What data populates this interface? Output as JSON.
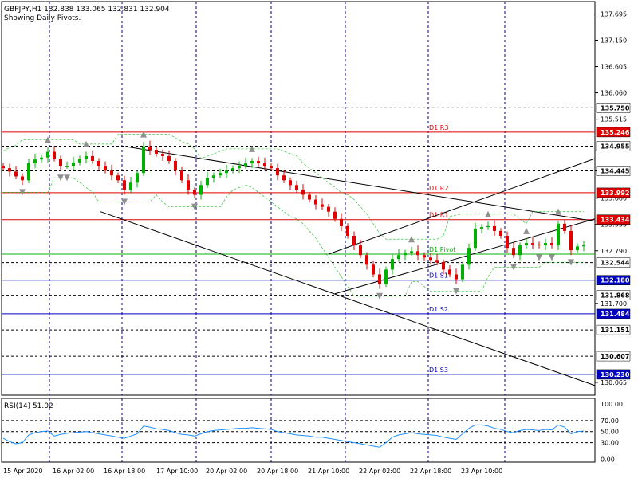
{
  "header": {
    "symbol_line": "GBPJPY,H1  132.838 133.065 132.831 132.904",
    "subtitle": "Showing Daily Pivots."
  },
  "colors": {
    "resistance": "#e00000",
    "support": "#0000c0",
    "pivot": "#00b000",
    "grid": "#000080",
    "bull": "#00b000",
    "bear": "#e00000",
    "rsi": "#1e90ff",
    "fractal": "#909090"
  },
  "chart_data": [
    {
      "type": "candlestick",
      "ylim": [
        129.8,
        137.95
      ],
      "y_ticks": [
        137.695,
        137.15,
        136.605,
        136.06,
        135.515,
        134.445,
        133.88,
        133.335,
        132.79,
        131.7,
        130.065
      ],
      "price_badges": [
        {
          "value": 135.75,
          "label": "135.750",
          "style": "black"
        },
        {
          "value": 135.246,
          "label": "135.246",
          "style": "red"
        },
        {
          "value": 134.955,
          "label": "134.955",
          "style": "black"
        },
        {
          "value": 134.445,
          "label": "134.445",
          "style": "black"
        },
        {
          "value": 133.992,
          "label": "133.992",
          "style": "red"
        },
        {
          "value": 133.434,
          "label": "133.434",
          "style": "red"
        },
        {
          "value": 132.544,
          "label": "132.544",
          "style": "black"
        },
        {
          "value": 132.18,
          "label": "132.180",
          "style": "blue"
        },
        {
          "value": 131.868,
          "label": "131.868",
          "style": "black"
        },
        {
          "value": 131.484,
          "label": "131.484",
          "style": "blue"
        },
        {
          "value": 131.151,
          "label": "131.151",
          "style": "black"
        },
        {
          "value": 130.607,
          "label": "130.607",
          "style": "black"
        },
        {
          "value": 130.23,
          "label": "130.230",
          "style": "blue"
        }
      ],
      "x_labels": [
        "15 Apr 2020",
        "16 Apr 02:00",
        "16 Apr 18:00",
        "17 Apr 10:00",
        "20 Apr 02:00",
        "20 Apr 18:00",
        "21 Apr 10:00",
        "22 Apr 02:00",
        "22 Apr 18:00",
        "23 Apr 10:00"
      ],
      "pivot_levels": [
        {
          "label": "D1 R3",
          "value": 135.246,
          "kind": "resistance"
        },
        {
          "label": "D1 R2",
          "value": 133.992,
          "kind": "resistance"
        },
        {
          "label": "D1 R1",
          "value": 133.434,
          "kind": "resistance"
        },
        {
          "label": "D1 Pivot",
          "value": 132.72,
          "kind": "pivot"
        },
        {
          "label": "D1 S1",
          "value": 132.18,
          "kind": "support"
        },
        {
          "label": "D1 S2",
          "value": 131.484,
          "kind": "support"
        },
        {
          "label": "D1 S3",
          "value": 130.23,
          "kind": "support"
        }
      ],
      "closes": [
        134.5,
        134.43,
        134.33,
        134.25,
        134.6,
        134.68,
        134.72,
        134.84,
        134.7,
        134.55,
        134.55,
        134.62,
        134.7,
        134.75,
        134.65,
        134.55,
        134.45,
        134.35,
        134.25,
        134.05,
        134.2,
        134.4,
        134.95,
        134.88,
        134.8,
        134.75,
        134.65,
        134.45,
        134.25,
        134.05,
        133.95,
        134.15,
        134.3,
        134.35,
        134.4,
        134.45,
        134.5,
        134.55,
        134.6,
        134.65,
        134.6,
        134.55,
        134.5,
        134.35,
        134.25,
        134.15,
        134.05,
        133.95,
        133.85,
        133.75,
        133.7,
        133.6,
        133.45,
        133.3,
        133.1,
        132.9,
        132.7,
        132.5,
        132.3,
        132.1,
        132.4,
        132.62,
        132.7,
        132.75,
        132.78,
        132.7,
        132.65,
        132.6,
        132.55,
        132.4,
        132.3,
        132.2,
        132.5,
        132.85,
        133.25,
        133.28,
        133.3,
        133.2,
        133.1,
        132.85,
        132.7,
        132.9,
        132.95,
        132.92,
        132.9,
        132.95,
        132.9,
        133.35,
        133.2,
        132.8,
        132.88,
        132.9
      ]
    },
    {
      "type": "line",
      "title": "RSI(14) 51.02",
      "ylim": [
        -5,
        110
      ],
      "y_ticks": [
        "100.00",
        "70.00",
        "50.00",
        "30.00",
        "0.00"
      ],
      "y_tick_values": [
        100,
        70,
        50,
        30,
        0
      ],
      "dotted_levels": [
        70,
        50,
        30
      ],
      "values": [
        38,
        32,
        28,
        30,
        44,
        48,
        50,
        51,
        42,
        45,
        47,
        48,
        49,
        50,
        48,
        46,
        44,
        42,
        40,
        38,
        42,
        46,
        60,
        58,
        55,
        54,
        52,
        48,
        45,
        44,
        42,
        46,
        50,
        52,
        53,
        54,
        55,
        56,
        56,
        57,
        56,
        55,
        54,
        50,
        48,
        46,
        44,
        43,
        42,
        40,
        40,
        38,
        36,
        34,
        32,
        30,
        28,
        26,
        24,
        22,
        30,
        40,
        44,
        46,
        48,
        46,
        45,
        44,
        43,
        40,
        38,
        36,
        46,
        56,
        62,
        62,
        60,
        56,
        54,
        50,
        48,
        52,
        54,
        53,
        52,
        54,
        53,
        62,
        58,
        46,
        50,
        51
      ]
    }
  ]
}
